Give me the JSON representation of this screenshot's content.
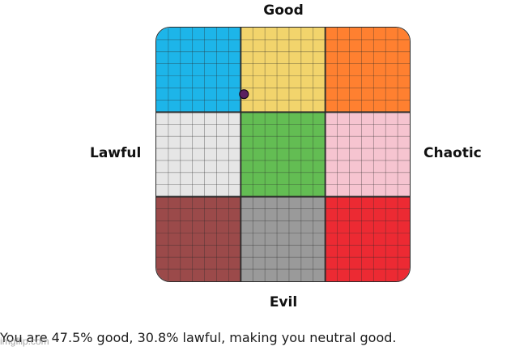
{
  "axes": {
    "top": "Good",
    "bottom": "Evil",
    "left": "Lawful",
    "right": "Chaotic"
  },
  "grid": {
    "cells": [
      {
        "name": "lawful-good",
        "color": "#1DB5E9"
      },
      {
        "name": "neutral-good",
        "color": "#F2D46C"
      },
      {
        "name": "chaotic-good",
        "color": "#FF8030"
      },
      {
        "name": "lawful-neutral",
        "color": "#E6E6E6"
      },
      {
        "name": "true-neutral",
        "color": "#63BD53"
      },
      {
        "name": "chaotic-neutral",
        "color": "#F6C4D0"
      },
      {
        "name": "lawful-evil",
        "color": "#9B4A4A"
      },
      {
        "name": "neutral-evil",
        "color": "#9A9A9A"
      },
      {
        "name": "chaotic-evil",
        "color": "#EC2A33"
      }
    ],
    "subdivisions_per_cell": 7,
    "line_color": "#2a2a2a"
  },
  "marker": {
    "good_percent": 47.5,
    "lawful_percent": 30.8,
    "color": "#5A1F5F"
  },
  "result_text": "You are 47.5% good, 30.8% lawful, making you neutral good.",
  "watermark": "imgflip.com"
}
